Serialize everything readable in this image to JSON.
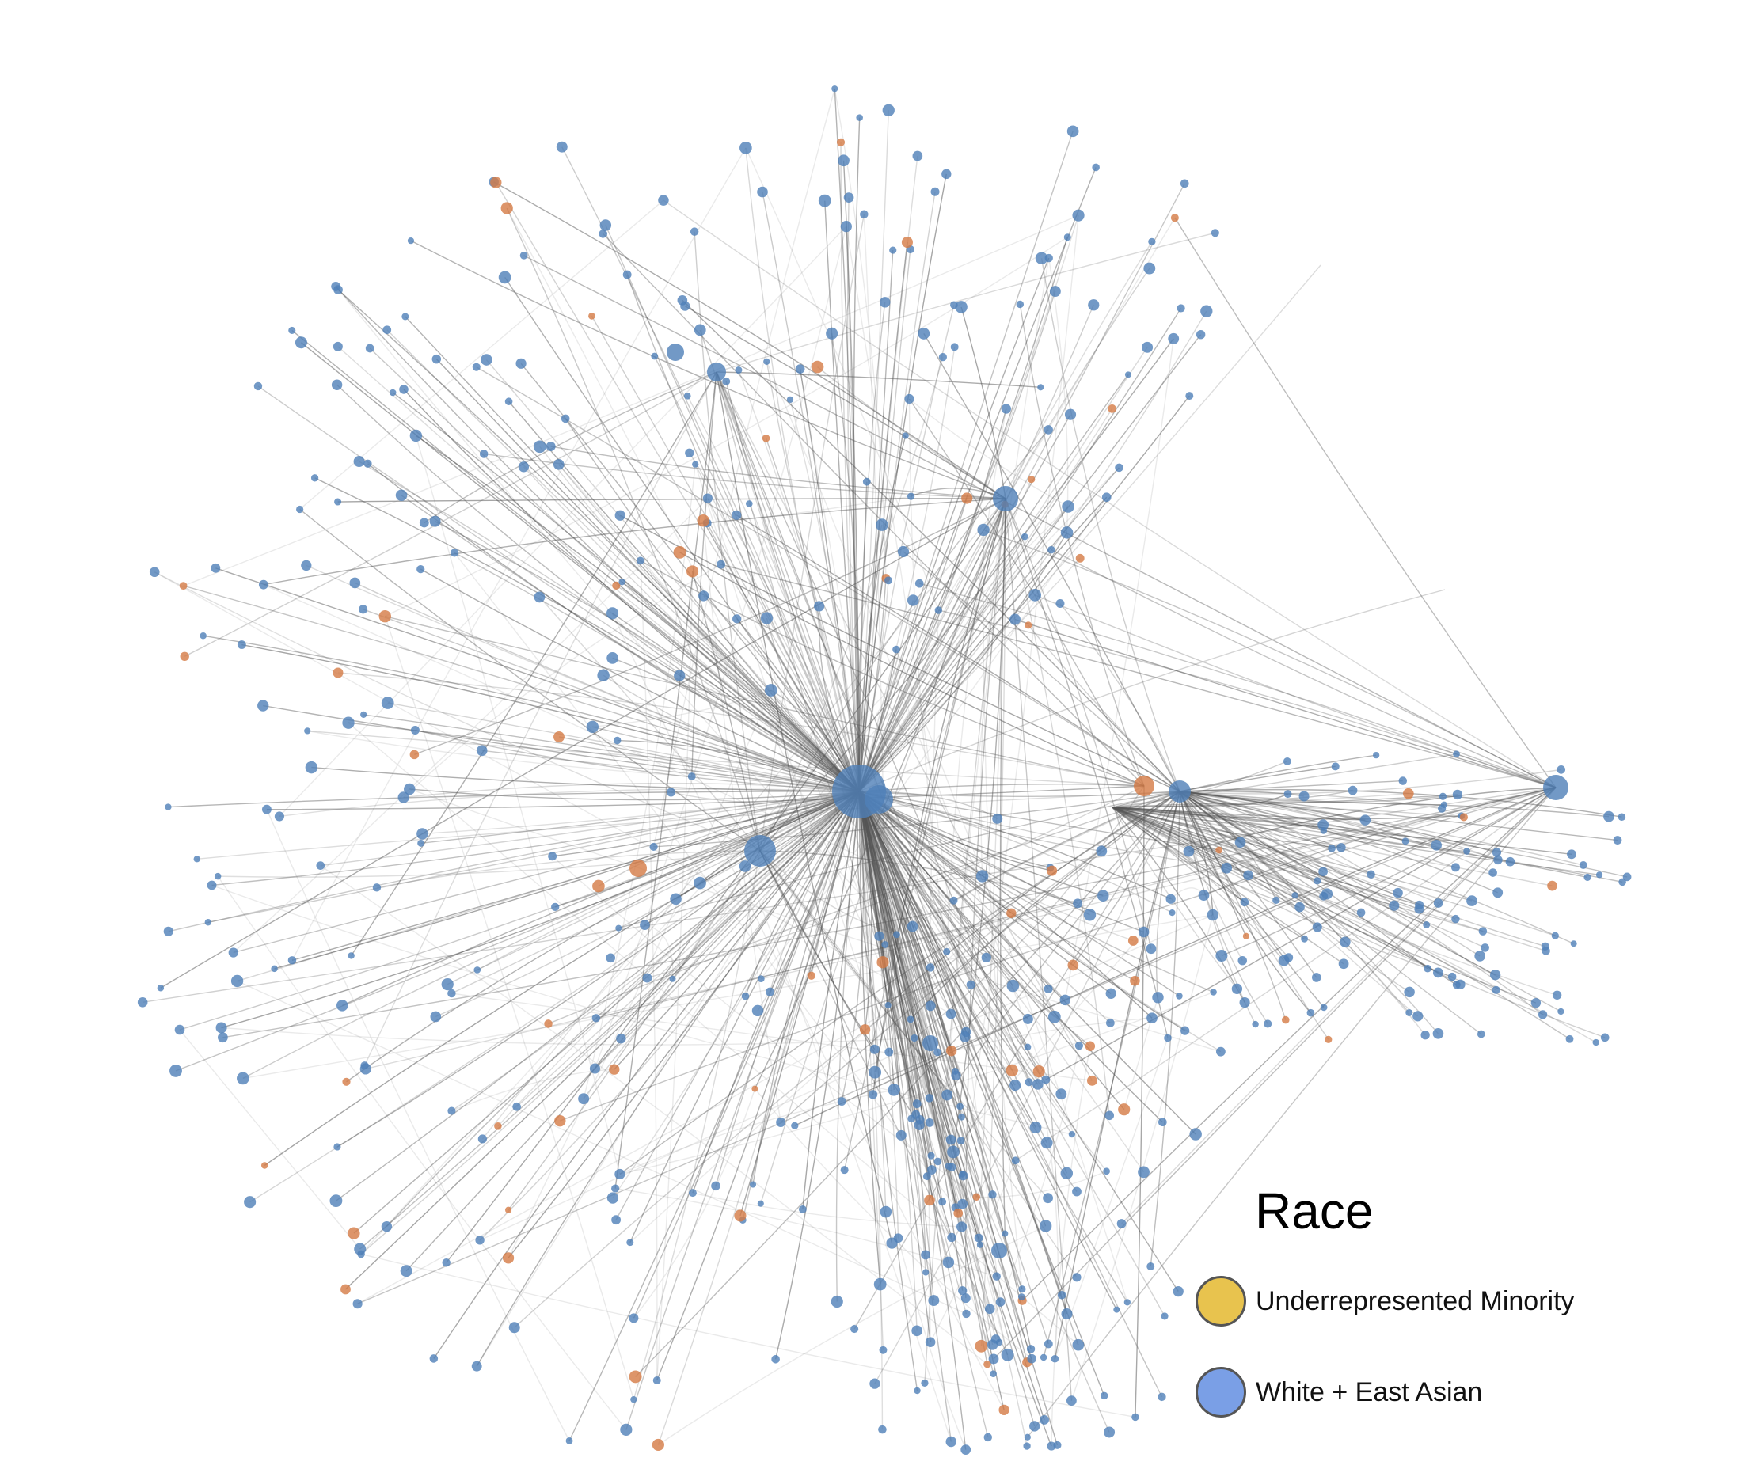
{
  "diagram": {
    "type": "network graph",
    "node_colors": {
      "blue": "#4f7fb8",
      "orange": "#d57a45"
    },
    "edge_color": "#555555"
  },
  "legend": {
    "title": "Race",
    "items": [
      {
        "label": "Underrepresented Minority",
        "color": "#e8c34e"
      },
      {
        "label": "White + East Asian",
        "color": "#7a9fe6"
      }
    ]
  }
}
